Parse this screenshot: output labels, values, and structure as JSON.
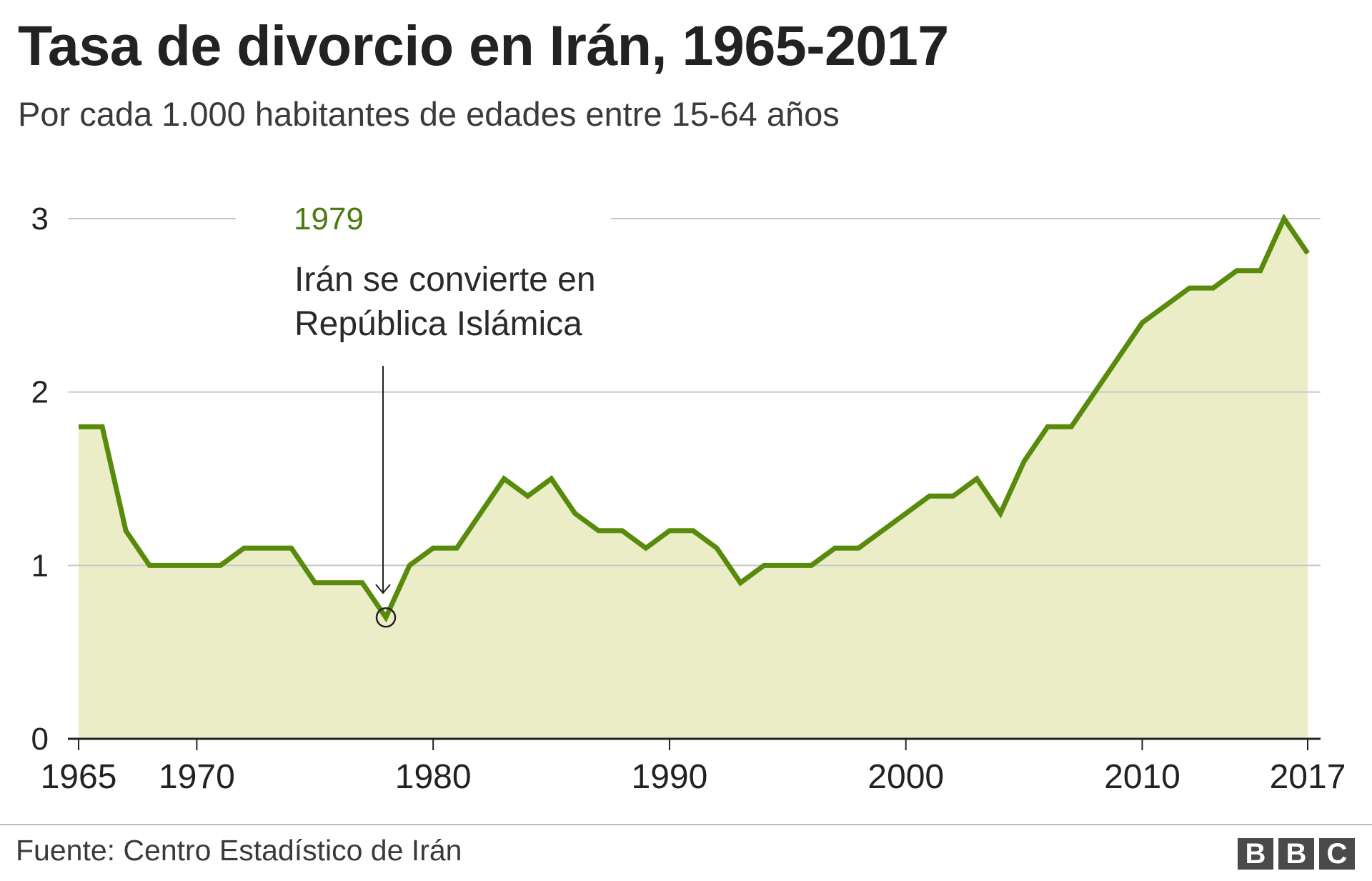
{
  "title": "Tasa de divorcio en Irán, 1965-2017",
  "subtitle": "Por cada 1.000 habitantes de edades entre 15-64 años",
  "source": "Fuente: Centro Estadístico de Irán",
  "logo": [
    "B",
    "B",
    "C"
  ],
  "colors": {
    "line": "#588a0c",
    "area": "#eaedc6",
    "grid": "#c8c8c8",
    "axis": "#222222",
    "annotation_year": "#4a7a10"
  },
  "chart_data": {
    "type": "area",
    "x": [
      1965,
      1966,
      1967,
      1968,
      1969,
      1970,
      1971,
      1972,
      1973,
      1974,
      1975,
      1976,
      1977,
      1978,
      1979,
      1980,
      1981,
      1982,
      1983,
      1984,
      1985,
      1986,
      1987,
      1988,
      1989,
      1990,
      1991,
      1992,
      1993,
      1994,
      1995,
      1996,
      1997,
      1998,
      1999,
      2000,
      2001,
      2002,
      2003,
      2004,
      2005,
      2006,
      2007,
      2008,
      2009,
      2010,
      2011,
      2012,
      2013,
      2014,
      2015,
      2016,
      2017
    ],
    "values": [
      1.8,
      1.8,
      1.2,
      1.0,
      1.0,
      1.0,
      1.0,
      1.1,
      1.1,
      1.1,
      0.9,
      0.9,
      0.9,
      0.7,
      1.0,
      1.1,
      1.1,
      1.3,
      1.5,
      1.4,
      1.5,
      1.3,
      1.2,
      1.2,
      1.1,
      1.2,
      1.2,
      1.1,
      0.9,
      1.0,
      1.0,
      1.0,
      1.1,
      1.1,
      1.2,
      1.3,
      1.4,
      1.4,
      1.5,
      1.3,
      1.6,
      1.8,
      1.8,
      2.0,
      2.2,
      2.4,
      2.5,
      2.6,
      2.6,
      2.7,
      2.7,
      3.0,
      2.8
    ],
    "x_ticks": [
      "1965",
      "1970",
      "1980",
      "1990",
      "2000",
      "2010",
      "2017"
    ],
    "y_ticks": [
      "0",
      "1",
      "2",
      "3"
    ],
    "xlim": [
      1965,
      2017
    ],
    "ylim": [
      0,
      3
    ],
    "grid": true,
    "annotation": {
      "year_label": "1979",
      "text_lines": [
        "Irán se convierte en",
        "República Islámica"
      ],
      "x": 1978,
      "y": 0.7
    }
  }
}
